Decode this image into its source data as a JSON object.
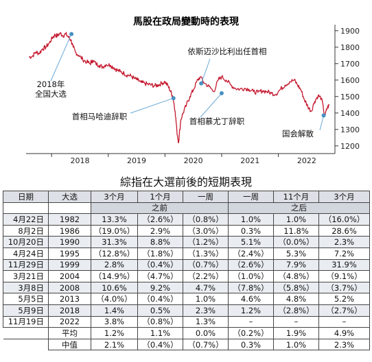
{
  "chart_data": {
    "type": "line",
    "title": "馬股在政局變動時的表現",
    "x_axis_ticks": [
      "2018",
      "2019",
      "2020",
      "2021",
      "2022"
    ],
    "y_axis_ticks": [
      1900,
      1800,
      1700,
      1600,
      1500,
      1400,
      1300,
      1200
    ],
    "ylim": [
      1170,
      1920
    ],
    "line_color": "#c4182e",
    "point_color": "#4a90c2",
    "series": [
      {
        "values_x": [
          2017.6,
          2017.66,
          2017.72,
          2017.78,
          2017.84,
          2017.9,
          2017.96,
          2018.02,
          2018.06,
          2018.1,
          2018.15,
          2018.2,
          2018.25,
          2018.3,
          2018.34,
          2018.38,
          2018.42,
          2018.48,
          2018.55,
          2018.62,
          2018.68,
          2018.72,
          2018.78,
          2018.84,
          2018.9,
          2018.96,
          2019.04,
          2019.1,
          2019.16,
          2019.22,
          2019.28,
          2019.34,
          2019.4,
          2019.46,
          2019.52,
          2019.58,
          2019.64,
          2019.7,
          2019.76,
          2019.82,
          2019.88,
          2019.94,
          2020.0,
          2020.06,
          2020.1,
          2020.14,
          2020.18,
          2020.21,
          2020.24,
          2020.28,
          2020.32,
          2020.38,
          2020.44,
          2020.5,
          2020.56,
          2020.62,
          2020.7,
          2020.78,
          2020.86,
          2020.94,
          2021.0,
          2021.08,
          2021.16,
          2021.24,
          2021.32,
          2021.4,
          2021.48,
          2021.56,
          2021.64,
          2021.72,
          2021.8,
          2021.88,
          2021.96,
          2022.04,
          2022.12,
          2022.2,
          2022.28,
          2022.34,
          2022.4,
          2022.46,
          2022.52,
          2022.58,
          2022.64,
          2022.7,
          2022.76,
          2022.82,
          2022.86,
          2022.9
        ],
        "values_y": [
          1740,
          1745,
          1770,
          1762,
          1790,
          1800,
          1825,
          1860,
          1875,
          1868,
          1885,
          1870,
          1880,
          1860,
          1845,
          1800,
          1770,
          1750,
          1725,
          1710,
          1700,
          1720,
          1700,
          1690,
          1680,
          1695,
          1690,
          1675,
          1660,
          1650,
          1640,
          1630,
          1625,
          1610,
          1600,
          1585,
          1580,
          1575,
          1570,
          1565,
          1570,
          1580,
          1590,
          1560,
          1530,
          1500,
          1410,
          1290,
          1220,
          1360,
          1400,
          1450,
          1500,
          1540,
          1590,
          1620,
          1580,
          1560,
          1530,
          1600,
          1620,
          1600,
          1570,
          1550,
          1545,
          1550,
          1545,
          1530,
          1525,
          1535,
          1530,
          1520,
          1515,
          1545,
          1570,
          1590,
          1600,
          1570,
          1540,
          1480,
          1440,
          1410,
          1470,
          1505,
          1490,
          1380,
          1430,
          1450
        ]
      }
    ],
    "annotations": [
      {
        "text_lines": [
          "2018年",
          "全国大选"
        ],
        "x": 2018.35,
        "y": 1880
      },
      {
        "text_lines": [
          "首相马哈迪辞职"
        ],
        "x": 2020.15,
        "y": 1490
      },
      {
        "text_lines": [
          "依斯迈沙比利出任首相"
        ],
        "x": 2020.64,
        "y": 1580
      },
      {
        "text_lines": [
          "首相慕尤丁辞职"
        ],
        "x": 2021.0,
        "y": 1520
      },
      {
        "text_lines": [
          "国会解散"
        ],
        "x": 2022.8,
        "y": 1385
      }
    ]
  },
  "table": {
    "title": "綜指在大選前後的短期表現",
    "headers": [
      "日期",
      "大选",
      "3个月",
      "1个月",
      "一周",
      "一周",
      "11个月",
      "3个月"
    ],
    "subheaders": [
      "之前",
      "之后"
    ],
    "rows": [
      [
        "4月22日",
        "1982",
        "13.3%",
        "（2.6%）",
        "（0.8%）",
        "1.0%",
        "1.0%",
        "（16.0%）"
      ],
      [
        "8月2日",
        "1986",
        "（19.0%）",
        "2.9%",
        "（3.0%）",
        "0.3%",
        "11.8%",
        "28.6%"
      ],
      [
        "10月20日",
        "1990",
        "31.3%",
        "8.8%",
        "（1.2%）",
        "5.1%",
        "（0.0%）",
        "2.3%"
      ],
      [
        "4月24日",
        "1995",
        "（12.8%）",
        "（1.8%）",
        "（1.3%）",
        "（2.4%）",
        "5.3%",
        "7.2%"
      ],
      [
        "11月29日",
        "1999",
        "2.8%",
        "（0.4%）",
        "（0.7%）",
        "（2.6%）",
        "7.9%",
        "31.9%"
      ],
      [
        "3月21日",
        "2004",
        "（14.9%）",
        "（4.7%）",
        "（2.2%）",
        "（1.0%）",
        "（4.8%）",
        "（9.1%）"
      ],
      [
        "3月8日",
        "2008",
        "10.6%",
        "9.2%",
        "4.7%",
        "（7.8%）",
        "（5.8%）",
        "（3.7%）"
      ],
      [
        "5月5日",
        "2013",
        "（4.0%）",
        "（0.4%）",
        "1.0%",
        "4.6%",
        "4.8%",
        "5.2%"
      ],
      [
        "5月9日",
        "2018",
        "1.4%",
        "0.5%",
        "2.3%",
        "1.2%",
        "（2.8%）",
        "（2.7%）"
      ],
      [
        "11月19日",
        "2022",
        "3.8%",
        "（0.8%）",
        "1.3%",
        "–",
        "–",
        "–"
      ]
    ],
    "summary": [
      [
        "平均",
        "1.2%",
        "1.1%",
        "0.0%",
        "（0.2%）",
        "1.9%",
        "4.9%"
      ],
      [
        "中值",
        "2.1%",
        "（0.4%）",
        "（0.7%）",
        "0.3%",
        "1.0%",
        "2.3%"
      ]
    ]
  }
}
